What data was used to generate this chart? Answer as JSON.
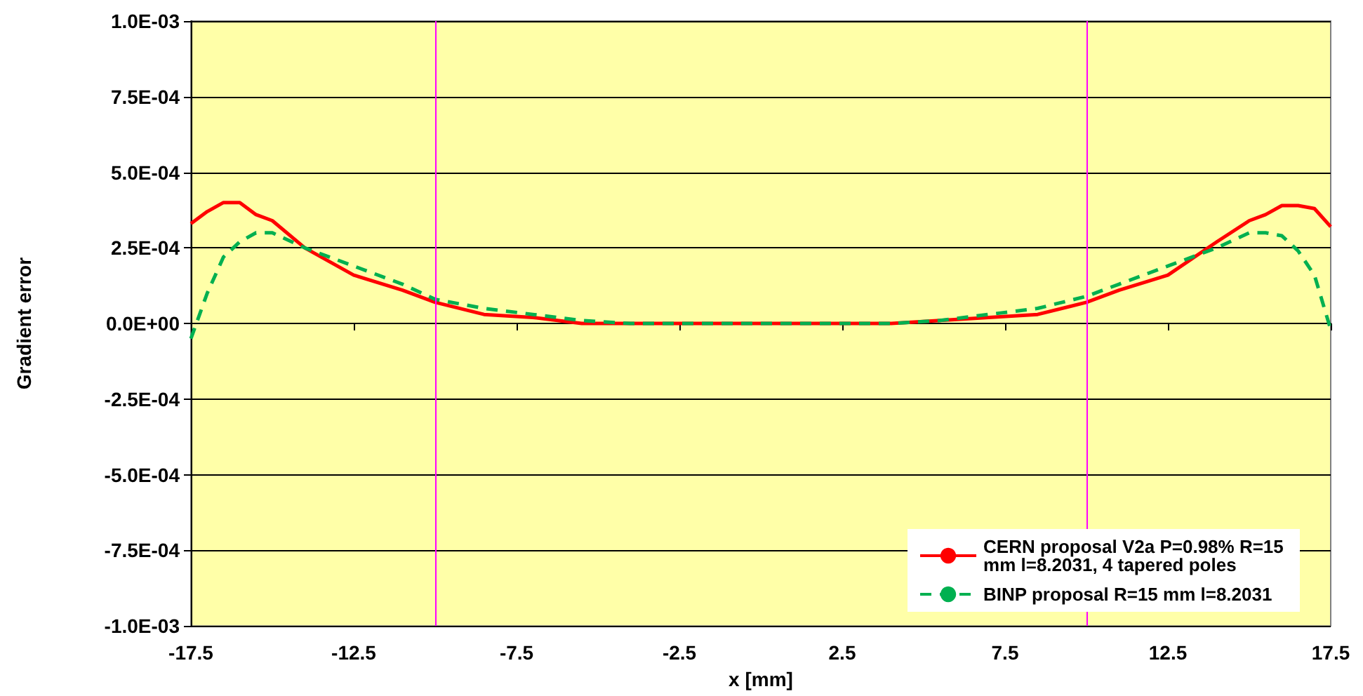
{
  "chart_data": {
    "type": "line",
    "xlabel": "x [mm]",
    "ylabel": "Gradient error",
    "xlim": [
      -17.5,
      17.5
    ],
    "xticks": [
      -17.5,
      -12.5,
      -7.5,
      -2.5,
      2.5,
      7.5,
      12.5,
      17.5
    ],
    "ylim": [
      -0.001,
      0.001
    ],
    "yticks": [
      {
        "value": -0.001,
        "label": "-1.0E-03"
      },
      {
        "value": -0.00075,
        "label": "-7.5E-04"
      },
      {
        "value": -0.0005,
        "label": "-5.0E-04"
      },
      {
        "value": -0.00025,
        "label": "-2.5E-04"
      },
      {
        "value": 0,
        "label": "0.0E+00"
      },
      {
        "value": 0.00025,
        "label": "2.5E-04"
      },
      {
        "value": 0.0005,
        "label": "5.0E-04"
      },
      {
        "value": 0.00075,
        "label": "7.5E-04"
      },
      {
        "value": 0.001,
        "label": "1.0E-03"
      }
    ],
    "x": [
      -17.5,
      -17,
      -16.5,
      -16,
      -15.5,
      -15,
      -14,
      -12.5,
      -11,
      -10,
      -8.5,
      -7,
      -5.5,
      -4,
      -2.5,
      0,
      2.5,
      4,
      5.5,
      7,
      8.5,
      10,
      11,
      12.5,
      14,
      15,
      15.5,
      16,
      16.5,
      17,
      17.5
    ],
    "series": [
      {
        "name": "CERN proposal V2a P=0.98% R=15 mm l=8.2031, 4 tapered poles",
        "color": "#ff0000",
        "line_style": "solid",
        "values": [
          0.00033,
          0.00037,
          0.0004,
          0.0004,
          0.00036,
          0.00034,
          0.00025,
          0.00016,
          0.00011,
          7e-05,
          3e-05,
          2e-05,
          0,
          0,
          0,
          0,
          0,
          0,
          1e-05,
          2e-05,
          3e-05,
          7e-05,
          0.00011,
          0.00016,
          0.00027,
          0.00034,
          0.00036,
          0.00039,
          0.00039,
          0.00038,
          0.00032
        ]
      },
      {
        "name": "BINP proposal R=15 mm l=8.2031",
        "color": "#00b050",
        "line_style": "dashed",
        "values": [
          -5e-05,
          0.0001,
          0.00022,
          0.00027,
          0.0003,
          0.0003,
          0.00025,
          0.00019,
          0.00013,
          8e-05,
          5e-05,
          3e-05,
          1e-05,
          0,
          0,
          0,
          0,
          0,
          1e-05,
          3e-05,
          5e-05,
          9e-05,
          0.00013,
          0.00019,
          0.00025,
          0.0003,
          0.0003,
          0.00029,
          0.00024,
          0.00016,
          -2e-05
        ]
      }
    ],
    "ref_lines": [
      {
        "axis": "x",
        "value": -10,
        "color": "#ff00ff"
      },
      {
        "axis": "x",
        "value": 10,
        "color": "#ff00ff"
      }
    ],
    "grid": "y",
    "legend": "bottom right",
    "marker": "none"
  }
}
